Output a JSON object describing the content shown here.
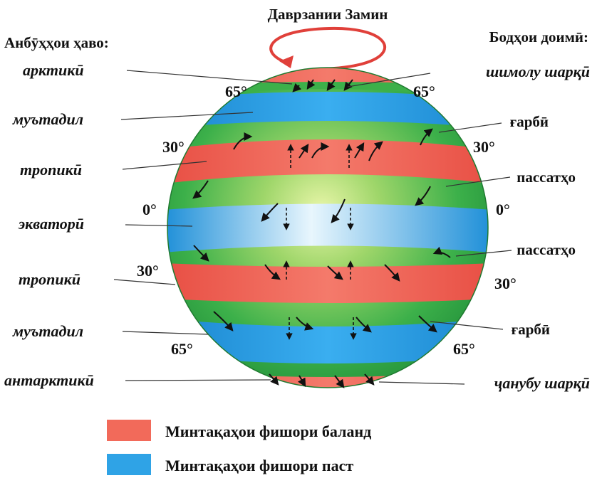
{
  "title": "Даврзании Замин",
  "left_heading": "Анбӯҳҳои ҳаво:",
  "right_heading": "Бодҳои доимӣ:",
  "air_masses": [
    "арктикӣ",
    "муътадил",
    "тропикӣ",
    "экваторӣ",
    "тропикӣ",
    "муътадил",
    "антарктикӣ"
  ],
  "winds": [
    "шимолу шарқӣ",
    "ғарбӣ",
    "пассатҳо",
    "пассатҳо",
    "ғарбӣ",
    "ҷанубу шарқӣ"
  ],
  "latitudes": {
    "n65": "65°",
    "n30": "30°",
    "eq": "0°",
    "s30": "30°",
    "s65": "65°"
  },
  "legend": {
    "high": "Минтақаҳои фишори баланд",
    "low": "Минтақаҳои фишори паст"
  },
  "colors": {
    "high_pressure": "#f26a5a",
    "low_pressure": "#2fa3e6",
    "globe_green": "#3cb04a",
    "rotation_arrow": "#e0403a"
  }
}
